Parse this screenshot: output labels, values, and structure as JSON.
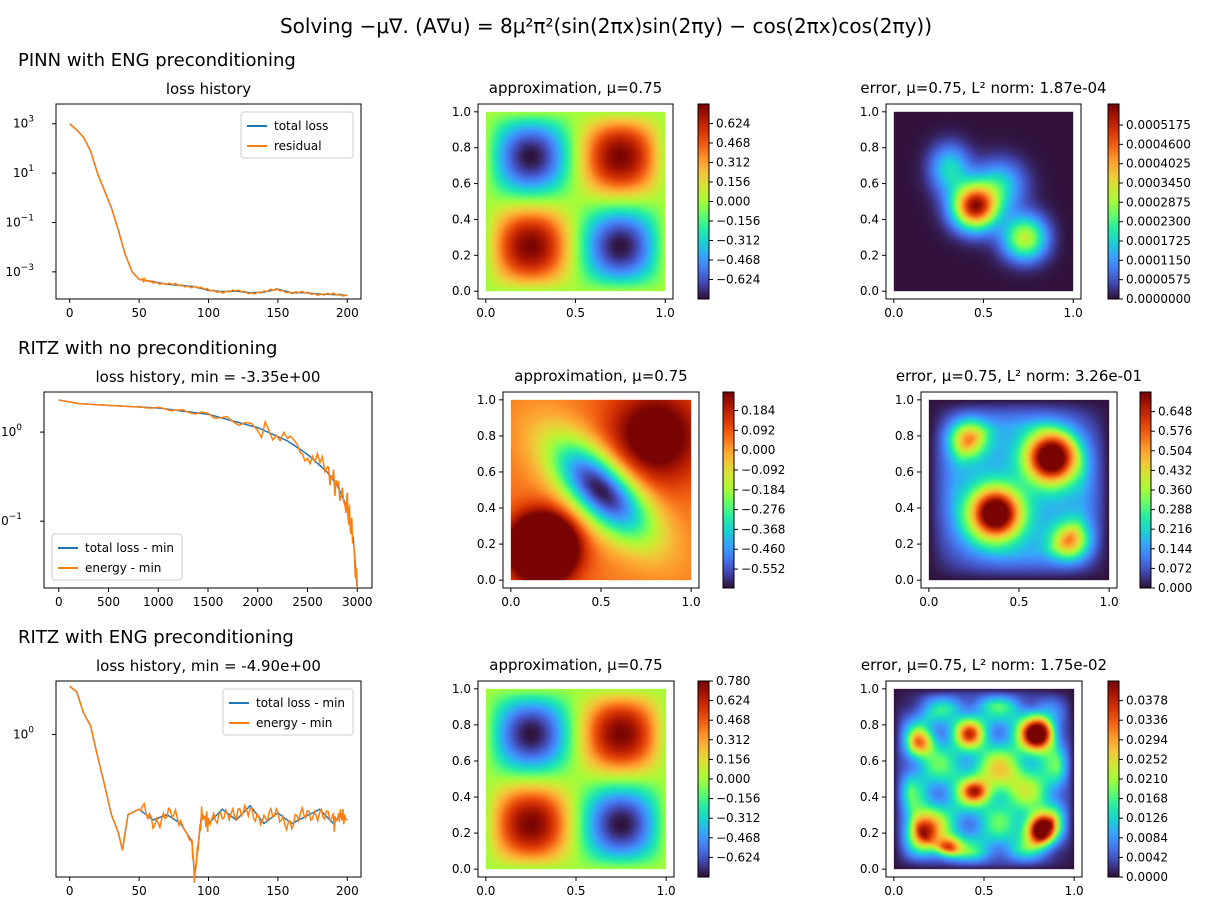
{
  "suptitle_parts": [
    "Solving −μ∇. (A∇u) = 8μ²π²(sin(2πx)sin(2πy) − cos(2πx)cos(2πy))"
  ],
  "rows": [
    {
      "heading": "PINN with ENG preconditioning"
    },
    {
      "heading": "RITZ with no preconditioning"
    },
    {
      "heading": "RITZ with ENG preconditioning"
    }
  ],
  "colors": {
    "series1": "#1f77b4",
    "series2": "#ff7f0e"
  },
  "chart_data": [
    {
      "type": "line",
      "title": "loss history",
      "yscale": "log",
      "xlim": [
        0,
        200
      ],
      "ylim_exp": [
        -4.1,
        3.8
      ],
      "x_ticks": [
        0,
        50,
        100,
        150,
        200
      ],
      "y_ticks": [
        {
          "label": "10",
          "exp": "3",
          "pos": 3
        },
        {
          "label": "10",
          "exp": "1",
          "pos": 1
        },
        {
          "label": "10",
          "exp": "−1",
          "pos": -1
        },
        {
          "label": "10",
          "exp": "−3",
          "pos": -3
        }
      ],
      "legend": "top-right",
      "series": [
        {
          "name": "total loss",
          "points": [
            [
              0,
              3.0
            ],
            [
              5,
              2.75
            ],
            [
              10,
              2.45
            ],
            [
              15,
              1.9
            ],
            [
              20,
              1.0
            ],
            [
              25,
              0.3
            ],
            [
              30,
              -0.4
            ],
            [
              35,
              -1.3
            ],
            [
              40,
              -2.3
            ],
            [
              45,
              -3.0
            ],
            [
              50,
              -3.3
            ],
            [
              55,
              -3.35
            ],
            [
              60,
              -3.4
            ],
            [
              70,
              -3.5
            ],
            [
              80,
              -3.55
            ],
            [
              90,
              -3.6
            ],
            [
              100,
              -3.75
            ],
            [
              110,
              -3.8
            ],
            [
              120,
              -3.78
            ],
            [
              130,
              -3.85
            ],
            [
              140,
              -3.82
            ],
            [
              150,
              -3.7
            ],
            [
              160,
              -3.85
            ],
            [
              170,
              -3.85
            ],
            [
              180,
              -3.9
            ],
            [
              190,
              -3.92
            ],
            [
              200,
              -3.95
            ]
          ]
        },
        {
          "name": "residual",
          "points": [
            [
              0,
              3.0
            ],
            [
              5,
              2.75
            ],
            [
              10,
              2.45
            ],
            [
              15,
              1.9
            ],
            [
              20,
              1.0
            ],
            [
              25,
              0.3
            ],
            [
              30,
              -0.4
            ],
            [
              35,
              -1.3
            ],
            [
              40,
              -2.3
            ],
            [
              45,
              -3.0
            ],
            [
              50,
              -3.3
            ],
            [
              55,
              -3.35
            ],
            [
              60,
              -3.4
            ],
            [
              70,
              -3.5
            ],
            [
              80,
              -3.55
            ],
            [
              90,
              -3.6
            ],
            [
              100,
              -3.75
            ],
            [
              110,
              -3.8
            ],
            [
              120,
              -3.78
            ],
            [
              130,
              -3.85
            ],
            [
              140,
              -3.82
            ],
            [
              150,
              -3.7
            ],
            [
              160,
              -3.85
            ],
            [
              170,
              -3.85
            ],
            [
              180,
              -3.9
            ],
            [
              190,
              -3.92
            ],
            [
              200,
              -3.95
            ]
          ]
        }
      ]
    },
    {
      "type": "heatmap",
      "title": "approximation, μ=0.75",
      "field": "sin",
      "x_ticks": [
        "0.0",
        "0.5",
        "1.0"
      ],
      "y_ticks": [
        "0.0",
        "0.2",
        "0.4",
        "0.6",
        "0.8",
        "1.0"
      ],
      "colorbar_ticks": [
        "0.624",
        "0.468",
        "0.312",
        "0.156",
        "0.000",
        "−0.156",
        "−0.312",
        "−0.468",
        "−0.624"
      ],
      "colorbar_range": [
        -0.78,
        0.78
      ]
    },
    {
      "type": "heatmap",
      "title": "error, μ=0.75, L² norm: 1.87e-04",
      "field": "err1",
      "x_ticks": [
        "0.0",
        "0.5",
        "1.0"
      ],
      "y_ticks": [
        "0.0",
        "0.2",
        "0.4",
        "0.6",
        "0.8",
        "1.0"
      ],
      "colorbar_ticks": [
        "0.0005175",
        "0.0004600",
        "0.0004025",
        "0.0003450",
        "0.0002875",
        "0.0002300",
        "0.0001725",
        "0.0001150",
        "0.0000575",
        "0.0000000"
      ],
      "colorbar_range": [
        0,
        0.00058
      ]
    },
    {
      "type": "line",
      "title": "loss history, min = -3.35e+00",
      "yscale": "log",
      "xlim": [
        0,
        3000
      ],
      "ylim_exp": [
        -1.75,
        0.45
      ],
      "x_ticks": [
        0,
        500,
        1000,
        1500,
        2000,
        2500,
        3000
      ],
      "y_ticks": [
        {
          "label": "10",
          "exp": "0",
          "pos": 0
        },
        {
          "label": "10",
          "exp": "−1",
          "pos": -1
        }
      ],
      "legend": "bottom-left",
      "series": [
        {
          "name": "total loss - min",
          "points": [
            [
              0,
              0.36
            ],
            [
              200,
              0.32
            ],
            [
              500,
              0.3
            ],
            [
              1000,
              0.27
            ],
            [
              1500,
              0.2
            ],
            [
              2000,
              0.05
            ],
            [
              2300,
              -0.1
            ],
            [
              2500,
              -0.25
            ],
            [
              2700,
              -0.45
            ],
            [
              2800,
              -0.6
            ],
            [
              2900,
              -0.85
            ],
            [
              2960,
              -1.2
            ],
            [
              3000,
              -1.75
            ]
          ]
        },
        {
          "name": "energy - min",
          "points": [
            [
              0,
              0.36
            ],
            [
              200,
              0.32
            ],
            [
              500,
              0.3
            ],
            [
              1000,
              0.27
            ],
            [
              1500,
              0.2
            ],
            [
              2000,
              0.05
            ],
            [
              2300,
              -0.1
            ],
            [
              2500,
              -0.25
            ],
            [
              2700,
              -0.45
            ],
            [
              2800,
              -0.6
            ],
            [
              2900,
              -0.85
            ],
            [
              2960,
              -1.2
            ],
            [
              3000,
              -1.75
            ]
          ]
        }
      ]
    },
    {
      "type": "heatmap",
      "title": "approximation, μ=0.75",
      "field": "ritz",
      "x_ticks": [
        "0.0",
        "0.5",
        "1.0"
      ],
      "y_ticks": [
        "0.0",
        "0.2",
        "0.4",
        "0.6",
        "0.8",
        "1.0"
      ],
      "colorbar_ticks": [
        "0.184",
        "0.092",
        "0.000",
        "−0.092",
        "−0.184",
        "−0.276",
        "−0.368",
        "−0.460",
        "−0.552"
      ],
      "colorbar_range": [
        -0.64,
        0.27
      ]
    },
    {
      "type": "heatmap",
      "title": "error, μ=0.75, L² norm: 3.26e-01",
      "field": "err2",
      "x_ticks": [
        "0.0",
        "0.5",
        "1.0"
      ],
      "y_ticks": [
        "0.0",
        "0.2",
        "0.4",
        "0.6",
        "0.8",
        "1.0"
      ],
      "colorbar_ticks": [
        "0.648",
        "0.576",
        "0.504",
        "0.432",
        "0.360",
        "0.288",
        "0.216",
        "0.144",
        "0.072",
        "0.000"
      ],
      "colorbar_range": [
        0,
        0.72
      ]
    },
    {
      "type": "line",
      "title": "loss history, min = -4.90e+00",
      "yscale": "log",
      "xlim": [
        0,
        200
      ],
      "ylim_exp": [
        -0.8,
        0.3
      ],
      "x_ticks": [
        0,
        50,
        100,
        150,
        200
      ],
      "y_ticks": [
        {
          "label": "10",
          "exp": "0",
          "pos": 0
        }
      ],
      "legend": "top-right",
      "series": [
        {
          "name": "total loss - min",
          "points": [
            [
              0,
              0.27
            ],
            [
              5,
              0.24
            ],
            [
              10,
              0.12
            ],
            [
              15,
              0.05
            ],
            [
              20,
              -0.12
            ],
            [
              25,
              -0.28
            ],
            [
              30,
              -0.45
            ],
            [
              35,
              -0.55
            ],
            [
              38,
              -0.65
            ],
            [
              42,
              -0.45
            ],
            [
              50,
              -0.42
            ],
            [
              60,
              -0.48
            ],
            [
              70,
              -0.45
            ],
            [
              80,
              -0.5
            ],
            [
              88,
              -0.6
            ],
            [
              90,
              -0.8
            ],
            [
              95,
              -0.45
            ],
            [
              100,
              -0.5
            ],
            [
              110,
              -0.42
            ],
            [
              120,
              -0.48
            ],
            [
              130,
              -0.4
            ],
            [
              140,
              -0.5
            ],
            [
              150,
              -0.44
            ],
            [
              160,
              -0.5
            ],
            [
              170,
              -0.46
            ],
            [
              180,
              -0.42
            ],
            [
              190,
              -0.5
            ],
            [
              195,
              -0.45
            ],
            [
              200,
              -0.48
            ]
          ]
        },
        {
          "name": "energy - min",
          "points": [
            [
              0,
              0.27
            ],
            [
              5,
              0.24
            ],
            [
              10,
              0.12
            ],
            [
              15,
              0.05
            ],
            [
              20,
              -0.12
            ],
            [
              25,
              -0.28
            ],
            [
              30,
              -0.45
            ],
            [
              35,
              -0.55
            ],
            [
              38,
              -0.65
            ],
            [
              42,
              -0.45
            ],
            [
              50,
              -0.42
            ],
            [
              60,
              -0.48
            ],
            [
              70,
              -0.45
            ],
            [
              80,
              -0.5
            ],
            [
              88,
              -0.6
            ],
            [
              90,
              -0.8
            ],
            [
              95,
              -0.45
            ],
            [
              100,
              -0.5
            ],
            [
              110,
              -0.42
            ],
            [
              120,
              -0.48
            ],
            [
              130,
              -0.4
            ],
            [
              140,
              -0.5
            ],
            [
              150,
              -0.44
            ],
            [
              160,
              -0.5
            ],
            [
              170,
              -0.46
            ],
            [
              180,
              -0.42
            ],
            [
              190,
              -0.5
            ],
            [
              195,
              -0.45
            ],
            [
              200,
              -0.48
            ]
          ]
        }
      ]
    },
    {
      "type": "heatmap",
      "title": "approximation, μ=0.75",
      "field": "sin",
      "x_ticks": [
        "0.0",
        "0.5",
        "1.0"
      ],
      "y_ticks": [
        "0.0",
        "0.2",
        "0.4",
        "0.6",
        "0.8",
        "1.0"
      ],
      "colorbar_ticks": [
        "0.780",
        "0.624",
        "0.468",
        "0.312",
        "0.156",
        "0.000",
        "−0.156",
        "−0.312",
        "−0.468",
        "−0.624"
      ],
      "colorbar_range": [
        -0.78,
        0.78
      ]
    },
    {
      "type": "heatmap",
      "title": "error, μ=0.75, L² norm: 1.75e-02",
      "field": "err3",
      "x_ticks": [
        "0.0",
        "0.5",
        "1.0"
      ],
      "y_ticks": [
        "0.0",
        "0.2",
        "0.4",
        "0.6",
        "0.8",
        "1.0"
      ],
      "colorbar_ticks": [
        "0.0378",
        "0.0336",
        "0.0294",
        "0.0252",
        "0.0210",
        "0.0168",
        "0.0126",
        "0.0084",
        "0.0042",
        "0.0000"
      ],
      "colorbar_range": [
        0,
        0.042
      ]
    }
  ]
}
